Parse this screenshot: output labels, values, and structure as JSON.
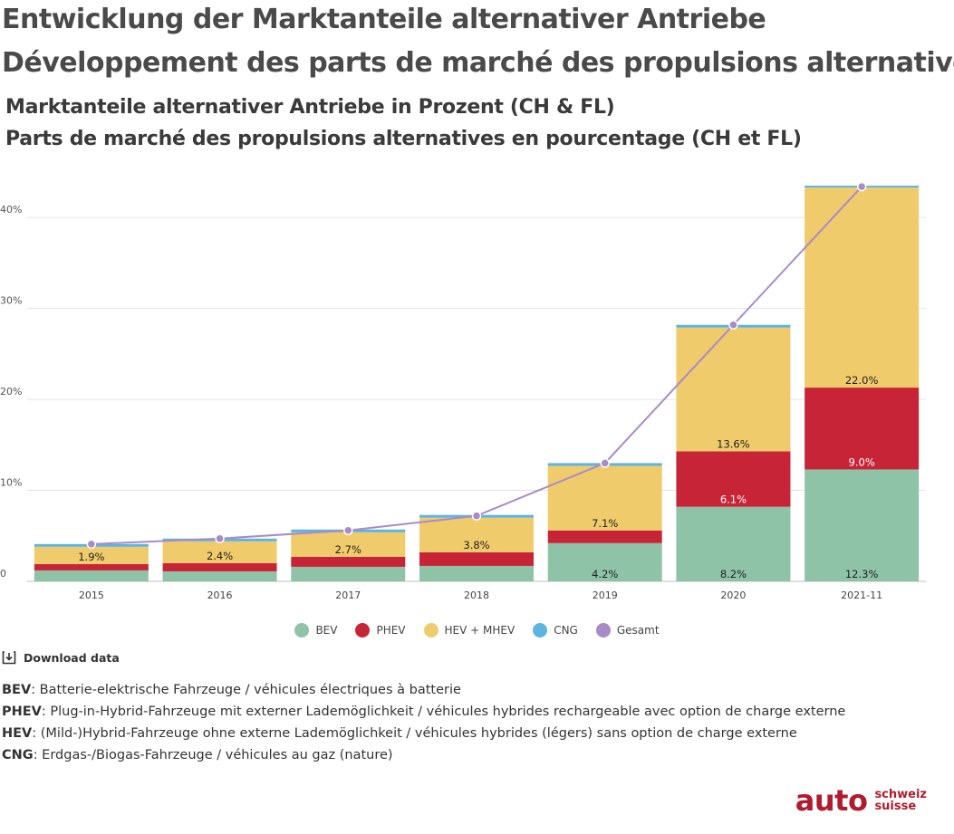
{
  "header": {
    "title_de": "Entwicklung der Marktanteile alternativer Antriebe",
    "title_fr": "Développement des parts de marché des propulsions alternatives",
    "subtitle_de": "Marktanteile alternativer Antriebe in Prozent (CH & FL)",
    "subtitle_fr": "Parts de marché des propulsions alternatives en pourcentage (CH et FL)"
  },
  "chart_data": {
    "type": "bar",
    "stacked": true,
    "categories": [
      "2015",
      "2016",
      "2017",
      "2018",
      "2019",
      "2020",
      "2021-11"
    ],
    "series": [
      {
        "name": "BEV",
        "color": "#8fc3a8",
        "values": [
          1.2,
          1.1,
          1.6,
          1.7,
          4.2,
          8.2,
          12.3
        ],
        "labels": [
          "",
          "",
          "",
          "",
          "4.2%",
          "8.2%",
          "12.3%"
        ]
      },
      {
        "name": "PHEV",
        "color": "#c72537",
        "values": [
          0.7,
          0.9,
          1.1,
          1.5,
          1.4,
          6.1,
          9.0
        ],
        "labels": [
          "",
          "",
          "",
          "",
          "",
          "6.1%",
          "9.0%"
        ]
      },
      {
        "name": "HEV + MHEV",
        "color": "#f0cb6b",
        "values": [
          1.9,
          2.4,
          2.7,
          3.8,
          7.1,
          13.6,
          22.0
        ],
        "labels": [
          "1.9%",
          "2.4%",
          "2.7%",
          "3.8%",
          "7.1%",
          "13.6%",
          "22.0%"
        ]
      },
      {
        "name": "CNG",
        "color": "#5db4e0",
        "values": [
          0.3,
          0.3,
          0.3,
          0.3,
          0.3,
          0.3,
          0.2
        ],
        "labels": [
          "",
          "",
          "",
          "",
          "",
          "",
          ""
        ]
      }
    ],
    "line_series": {
      "name": "Gesamt",
      "color": "#a88bc7",
      "values": [
        4.1,
        4.7,
        5.6,
        7.2,
        13.0,
        28.2,
        43.4
      ]
    },
    "y_ticks": [
      {
        "value": 0,
        "label": "0"
      },
      {
        "value": 10,
        "label": "10%"
      },
      {
        "value": 20,
        "label": "20%"
      },
      {
        "value": 30,
        "label": "30%"
      },
      {
        "value": 40,
        "label": "40%"
      }
    ],
    "ylim": [
      0,
      45
    ],
    "grid": true,
    "legend_position": "bottom"
  },
  "download": {
    "label": "Download data",
    "icon": "download-icon"
  },
  "notes": [
    {
      "term": "BEV",
      "text": ": Batterie-elektrische Fahrzeuge / véhicules électriques à batterie"
    },
    {
      "term": "PHEV",
      "text": ": Plug-in-Hybrid-Fahrzeuge mit externer Lademöglichkeit / véhicules hybrides rechargeable avec option de charge externe"
    },
    {
      "term": "HEV",
      "text": ": (Mild-)Hybrid-Fahrzeuge ohne externe Lademöglichkeit / véhicules hybrides (légers) sans option de charge externe"
    },
    {
      "term": "CNG",
      "text": ": Erdgas-/Biogas-Fahrzeuge / véhicules au gaz (nature)"
    }
  ],
  "logo": {
    "main": "auto",
    "side_top": "schweiz",
    "side_bottom": "suisse",
    "color": "#b01c2e"
  }
}
